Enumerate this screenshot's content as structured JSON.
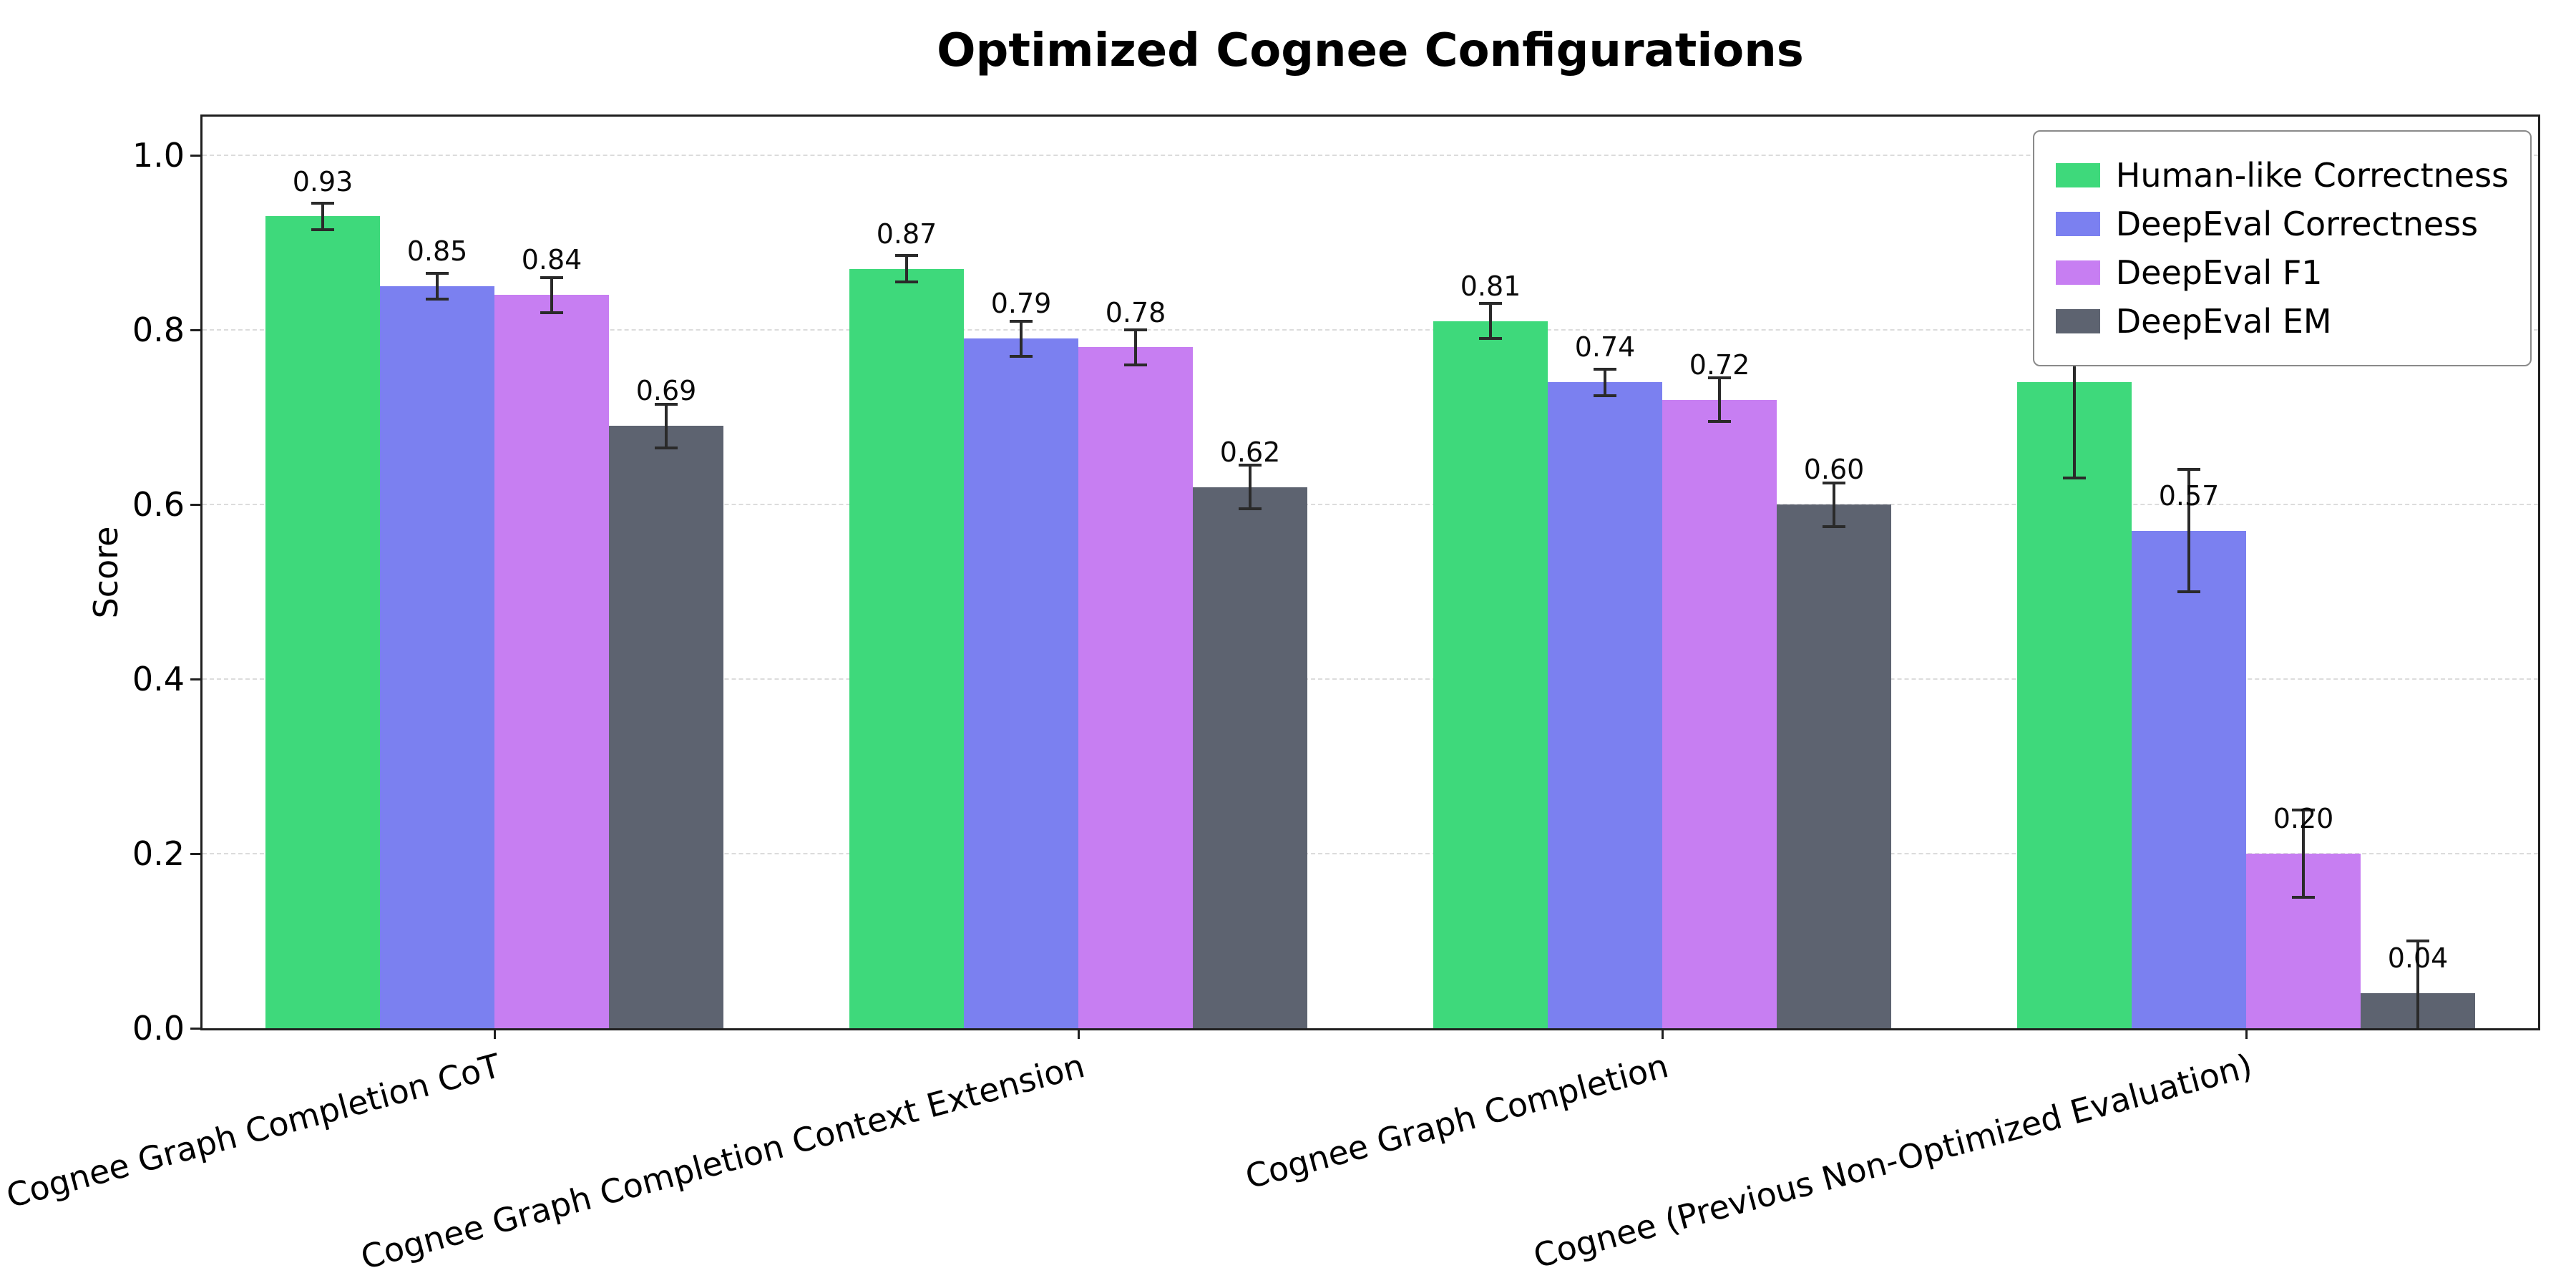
{
  "title": "Optimized Cognee Configurations",
  "chart_data": {
    "type": "bar",
    "title": "Optimized Cognee Configurations",
    "xlabel": "",
    "ylabel": "Score",
    "ylim": [
      0,
      1.05
    ],
    "yticks": [
      "0.0",
      "0.2",
      "0.4",
      "0.6",
      "0.8",
      "1.0"
    ],
    "grid": "horizontal-dashed",
    "legend_position": "upper-right",
    "error_bars": true,
    "categories": [
      "Cognee Graph Completion CoT",
      "Cognee Graph Completion Context Extension",
      "Cognee Graph Completion",
      "Cognee (Previous Non-Optimized Evaluation)"
    ],
    "series": [
      {
        "name": "Human-like Correctness",
        "color": "#3ed97b",
        "values": [
          0.93,
          0.87,
          0.81,
          0.74
        ],
        "errors": [
          0.015,
          0.015,
          0.02,
          0.11
        ]
      },
      {
        "name": "DeepEval Correctness",
        "color": "#7b80f0",
        "values": [
          0.85,
          0.79,
          0.74,
          0.57
        ],
        "errors": [
          0.015,
          0.02,
          0.015,
          0.07
        ]
      },
      {
        "name": "DeepEval F1",
        "color": "#c77ef2",
        "values": [
          0.84,
          0.78,
          0.72,
          0.2
        ],
        "errors": [
          0.02,
          0.02,
          0.025,
          0.05
        ]
      },
      {
        "name": "DeepEval EM",
        "color": "#5d6370",
        "values": [
          0.69,
          0.62,
          0.6,
          0.04
        ],
        "errors": [
          0.025,
          0.025,
          0.025,
          0.06
        ]
      }
    ]
  },
  "colors": {
    "background": "#ffffff",
    "grid": "#dcdcdc",
    "axis": "#1f1f1f",
    "errorbar": "#2a2a2a",
    "legend_border": "#8a8a8a",
    "text": "#000000"
  }
}
